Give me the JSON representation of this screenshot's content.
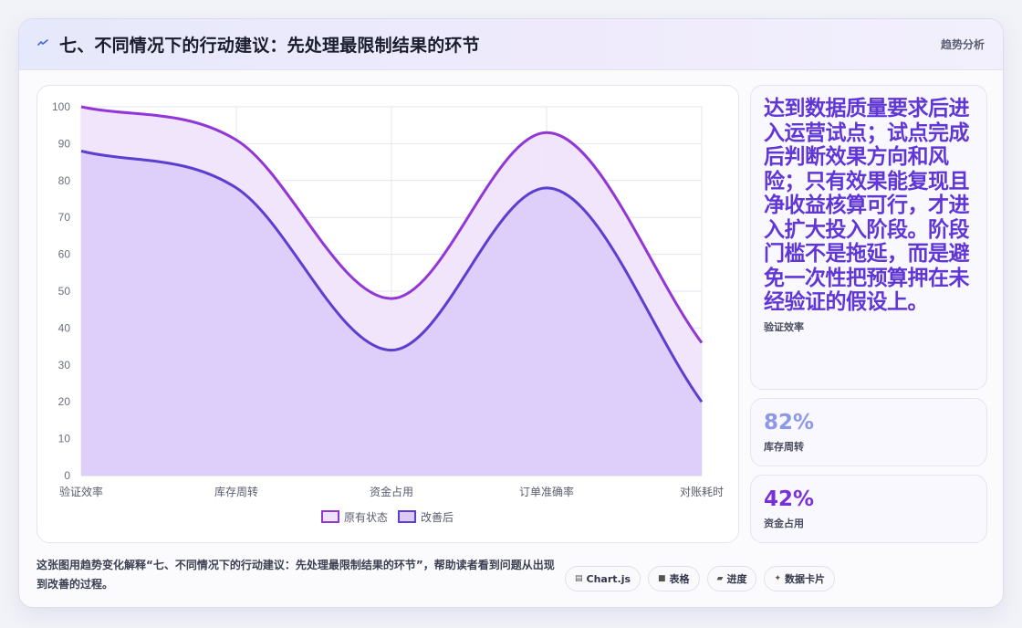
{
  "header": {
    "icon": "trend-line-icon",
    "title": "七、不同情况下的行动建议：先处理最限制结果的环节",
    "tag": "趋势分析"
  },
  "chart_data": {
    "type": "area",
    "categories": [
      "验证效率",
      "库存周转",
      "资金占用",
      "订单准确率",
      "对账耗时"
    ],
    "series": [
      {
        "name": "原有状态",
        "values": [
          100,
          91,
          48,
          93,
          36
        ],
        "color": "#9236d6",
        "fill": "#efe2fb"
      },
      {
        "name": "改善后",
        "values": [
          88,
          78,
          34,
          78,
          20
        ],
        "color": "#5b3fd0",
        "fill": "#dccbf9"
      }
    ],
    "ylim": [
      0,
      100
    ],
    "yticks": [
      0,
      10,
      20,
      30,
      40,
      50,
      60,
      70,
      80,
      90,
      100
    ],
    "grid": true,
    "legend_position": "bottom"
  },
  "side": {
    "main_text": "达到数据质量要求后进入运营试点；试点完成后判断效果方向和风险；只有效果能复现且净收益核算可行，才进入扩大投入阶段。阶段门槛不是拖延，而是避免一次性把预算押在未经验证的假设上。",
    "main_label": "验证效率",
    "stat1_value": "82%",
    "stat1_label": "库存周转",
    "stat2_value": "42%",
    "stat2_label": "资金占用"
  },
  "footer": {
    "text": "这张图用趋势变化解释“七、不同情况下的行动建议：先处理最限制结果的环节”，帮助读者看到问题从出现到改善的过程。",
    "chips": [
      {
        "icon": "▤",
        "label": "Chart.js"
      },
      {
        "icon": "■",
        "label": "表格"
      },
      {
        "icon": "▰",
        "label": "进度"
      },
      {
        "icon": "✦",
        "label": "数据卡片"
      }
    ]
  }
}
